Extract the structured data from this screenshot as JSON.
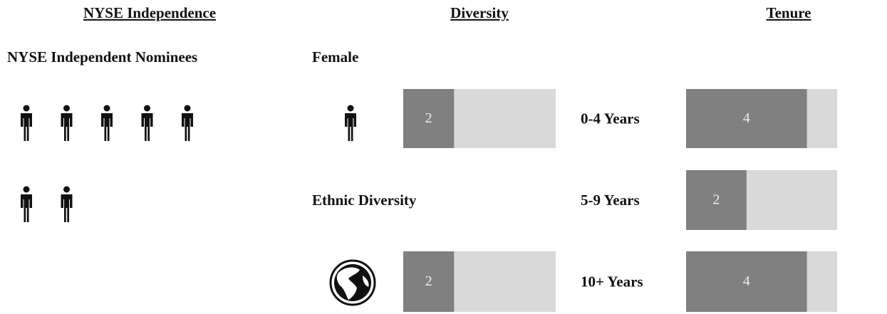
{
  "independence": {
    "title": "NYSE Independence",
    "label": "NYSE Independent Nominees",
    "count": 7
  },
  "diversity": {
    "title": "Diversity",
    "xlim": [
      0,
      6
    ],
    "items": [
      {
        "label": "Female",
        "value": 2
      },
      {
        "label": "Ethnic Diversity",
        "value": 2
      }
    ]
  },
  "tenure": {
    "title": "Tenure",
    "xlim": [
      0,
      5
    ],
    "items": [
      {
        "label": "0-4 Years",
        "value": 4
      },
      {
        "label": "5-9 Years",
        "value": 2
      },
      {
        "label": "10+ Years",
        "value": 4
      }
    ]
  }
}
